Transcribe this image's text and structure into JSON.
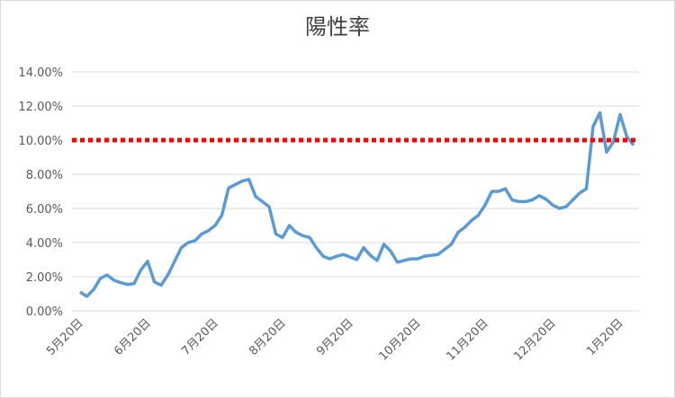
{
  "chart_data": {
    "type": "line",
    "title": "陽性率",
    "categories": [
      "5月20日",
      null,
      null,
      null,
      null,
      null,
      null,
      null,
      null,
      null,
      "6月20日",
      null,
      null,
      null,
      null,
      null,
      null,
      null,
      null,
      null,
      "7月20日",
      null,
      null,
      null,
      null,
      null,
      null,
      null,
      null,
      null,
      "8月20日",
      null,
      null,
      null,
      null,
      null,
      null,
      null,
      null,
      null,
      "9月20日",
      null,
      null,
      null,
      null,
      null,
      null,
      null,
      null,
      null,
      "10月20日",
      null,
      null,
      null,
      null,
      null,
      null,
      null,
      null,
      null,
      "11月20日",
      null,
      null,
      null,
      null,
      null,
      null,
      null,
      null,
      null,
      "12月20日",
      null,
      null,
      null,
      null,
      null,
      null,
      null,
      null,
      null,
      "1月20日",
      null,
      null
    ],
    "series": [
      {
        "color": "#5b9bd5",
        "values": [
          1.1,
          0.85,
          1.25,
          1.9,
          2.1,
          1.8,
          1.65,
          1.55,
          1.6,
          2.4,
          2.9,
          1.7,
          1.5,
          2.1,
          2.9,
          3.7,
          4.0,
          4.1,
          4.5,
          4.7,
          5.0,
          5.6,
          7.2,
          7.4,
          7.6,
          7.7,
          6.7,
          6.4,
          6.1,
          4.5,
          4.3,
          5.0,
          4.6,
          4.4,
          4.3,
          3.7,
          3.2,
          3.05,
          3.2,
          3.3,
          3.15,
          3.0,
          3.7,
          3.25,
          2.95,
          3.9,
          3.5,
          2.85,
          2.95,
          3.05,
          3.05,
          3.2,
          3.25,
          3.3,
          3.6,
          3.9,
          4.6,
          4.9,
          5.3,
          5.6,
          6.2,
          7.0,
          7.0,
          7.15,
          6.5,
          6.4,
          6.4,
          6.5,
          6.75,
          6.55,
          6.2,
          6.0,
          6.1,
          6.5,
          6.9,
          7.15,
          10.8,
          11.6,
          9.3,
          9.9,
          11.5,
          10.2,
          9.7
        ]
      }
    ],
    "reference_line": {
      "value": 10,
      "color": "#ff0000"
    },
    "ylim": [
      0,
      14
    ],
    "yticks": [
      {
        "value": 0,
        "label": "0.00%"
      },
      {
        "value": 2,
        "label": "2.00%"
      },
      {
        "value": 4,
        "label": "4.00%"
      },
      {
        "value": 6,
        "label": "6.00%"
      },
      {
        "value": 8,
        "label": "8.00%"
      },
      {
        "value": 10,
        "label": "10.00%"
      },
      {
        "value": 12,
        "label": "12.00%"
      },
      {
        "value": 14,
        "label": "14.00%"
      }
    ],
    "grid": true
  }
}
